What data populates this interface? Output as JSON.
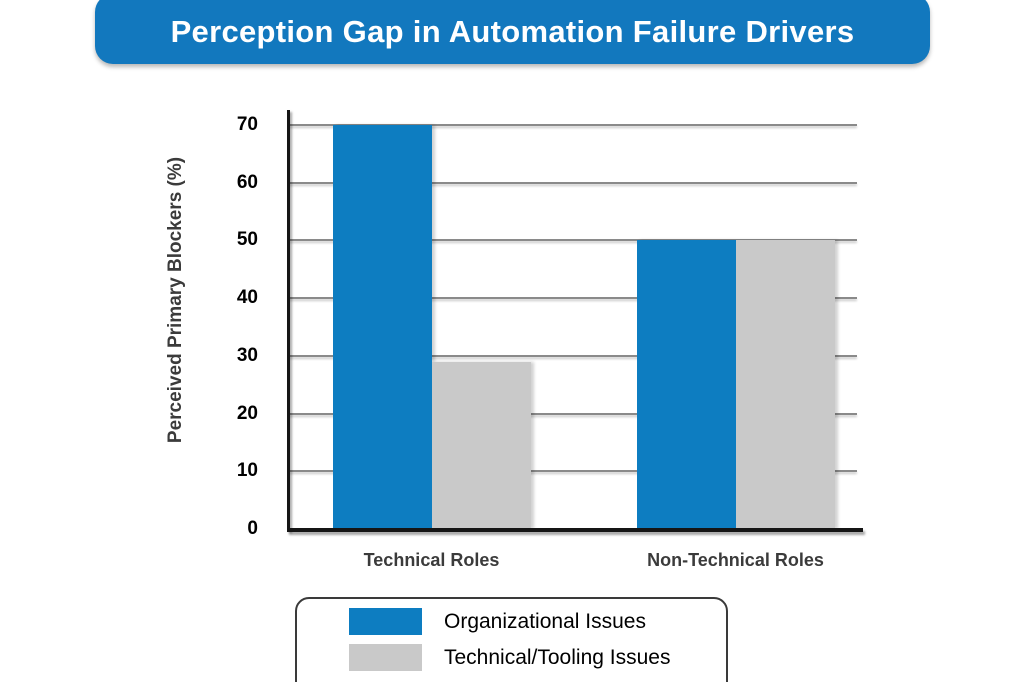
{
  "title": "Perception Gap in Automation Failure Drivers",
  "colors": {
    "banner_blue": "#1278BE",
    "series_blue": "#0D7DC1",
    "series_gray": "#C9C9C9",
    "grid": "#8A8A8A",
    "axis": "#151515",
    "label_dark": "#3B3B3B",
    "tick_black": "#000000"
  },
  "chart_data": {
    "type": "bar",
    "categories": [
      "Technical Roles",
      "Non-Technical Roles"
    ],
    "series": [
      {
        "name": "Organizational Issues",
        "color_key": "series_blue",
        "values": [
          70,
          50
        ]
      },
      {
        "name": "Technical/Tooling Issues",
        "color_key": "series_gray",
        "values": [
          29,
          50
        ]
      }
    ],
    "title": "Perception Gap in Automation Failure Drivers",
    "xlabel": "",
    "ylabel": "Perceived Primary Blockers (%)",
    "ylim": [
      0,
      70
    ],
    "yticks": [
      0,
      10,
      20,
      30,
      40,
      50,
      60,
      70
    ],
    "grid": true,
    "legend_position": "bottom"
  },
  "legend": {
    "items": [
      {
        "label": "Organizational Issues",
        "color_key": "series_blue"
      },
      {
        "label": "Technical/Tooling Issues",
        "color_key": "series_gray"
      }
    ]
  }
}
